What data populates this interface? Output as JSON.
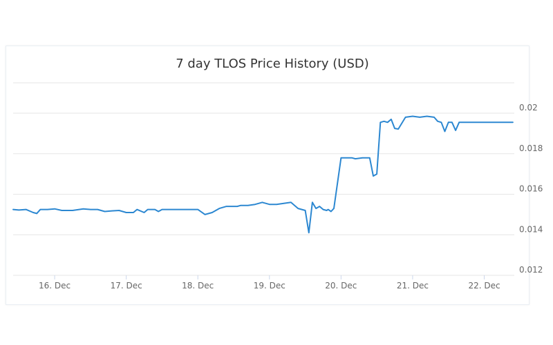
{
  "chart_data": {
    "type": "line",
    "title": "7 day TLOS Price History (USD)",
    "xlabel": "",
    "ylabel": "",
    "x_tick_labels": [
      "16. Dec",
      "17. Dec",
      "18. Dec",
      "19. Dec",
      "20. Dec",
      "21. Dec",
      "22. Dec"
    ],
    "y_tick_labels": [
      "0.012",
      "0.014",
      "0.016",
      "0.018",
      "0.02"
    ],
    "ylim": [
      0.012,
      0.0215
    ],
    "xlim_days": [
      "15. Dec (~10:00)",
      "22. Dec (~10:00)"
    ],
    "grid": "horizontal",
    "legend": "none",
    "series": [
      {
        "color": "#2b87d1",
        "x_days": [
          15.42,
          15.5,
          15.6,
          15.7,
          15.75,
          15.8,
          15.9,
          16.0,
          16.1,
          16.2,
          16.25,
          16.4,
          16.5,
          16.6,
          16.7,
          16.8,
          16.9,
          17.0,
          17.1,
          17.15,
          17.25,
          17.3,
          17.4,
          17.45,
          17.5,
          17.6,
          17.7,
          17.8,
          17.9,
          18.0,
          18.1,
          18.2,
          18.3,
          18.4,
          18.5,
          18.55,
          18.6,
          18.7,
          18.8,
          18.9,
          19.0,
          19.1,
          19.2,
          19.3,
          19.4,
          19.5,
          19.55,
          19.6,
          19.65,
          19.7,
          19.75,
          19.8,
          19.82,
          19.86,
          19.9,
          20.0,
          20.1,
          20.15,
          20.2,
          20.3,
          20.35,
          20.4,
          20.45,
          20.5,
          20.55,
          20.6,
          20.65,
          20.7,
          20.75,
          20.8,
          20.9,
          21.0,
          21.1,
          21.2,
          21.3,
          21.35,
          21.4,
          21.45,
          21.5,
          21.55,
          21.6,
          21.65,
          21.7,
          21.75,
          21.8,
          21.9,
          22.0,
          22.05,
          22.1,
          22.15,
          22.2,
          22.25,
          22.3,
          22.35,
          22.4
        ],
        "values": [
          0.01525,
          0.01522,
          0.01525,
          0.0151,
          0.01505,
          0.01525,
          0.01525,
          0.01528,
          0.0152,
          0.0152,
          0.0152,
          0.01528,
          0.01525,
          0.01525,
          0.01515,
          0.01518,
          0.0152,
          0.0151,
          0.0151,
          0.01525,
          0.0151,
          0.01525,
          0.01525,
          0.01515,
          0.01525,
          0.01525,
          0.01525,
          0.01525,
          0.01525,
          0.01525,
          0.015,
          0.0151,
          0.0153,
          0.0154,
          0.0154,
          0.0154,
          0.01545,
          0.01545,
          0.0155,
          0.0156,
          0.0155,
          0.0155,
          0.01555,
          0.0156,
          0.0153,
          0.0152,
          0.0141,
          0.0156,
          0.0153,
          0.0154,
          0.01525,
          0.0152,
          0.01525,
          0.01515,
          0.0153,
          0.0178,
          0.0178,
          0.0178,
          0.01775,
          0.0178,
          0.0178,
          0.0178,
          0.0169,
          0.017,
          0.01955,
          0.0196,
          0.01955,
          0.0197,
          0.01925,
          0.01922,
          0.0198,
          0.01985,
          0.0198,
          0.01985,
          0.0198,
          0.0196,
          0.01955,
          0.0191,
          0.01955,
          0.01955,
          0.01915,
          0.01955,
          0.01955,
          0.01955,
          0.01955,
          0.01955,
          0.01955,
          0.01955,
          0.01955,
          0.01955,
          0.01955,
          0.01955,
          0.01955,
          0.01955,
          0.01955
        ]
      }
    ]
  }
}
